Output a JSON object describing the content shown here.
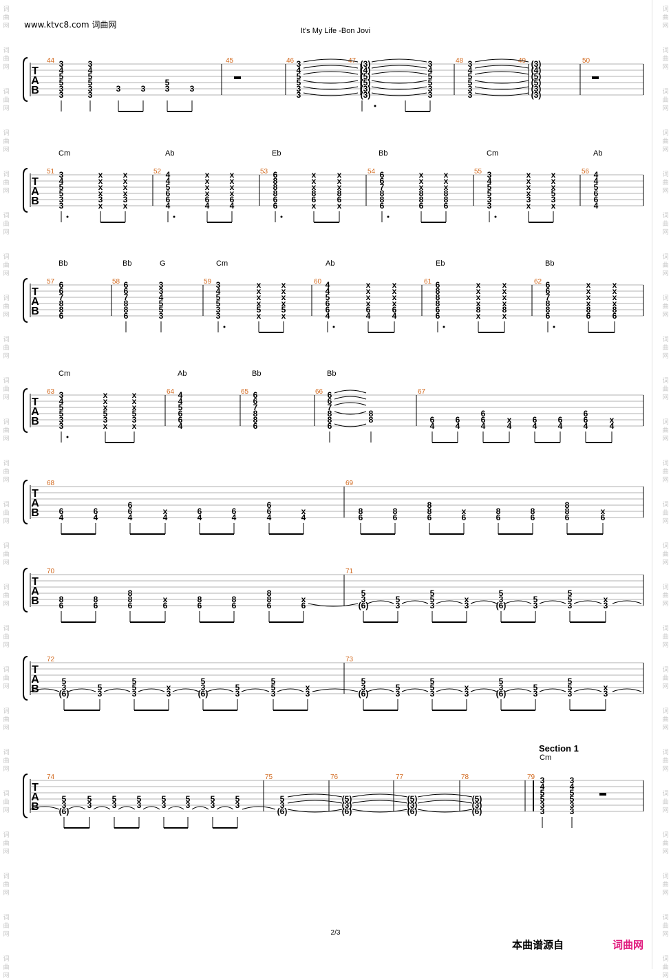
{
  "header": {
    "site": "www.ktvc8.com 词曲网",
    "title": "It's My Life -Bon Jovi"
  },
  "footer": {
    "page": "2/3",
    "source": "本曲谱源自",
    "brand": "词曲网"
  },
  "watermark": [
    "词",
    "曲",
    "网"
  ],
  "tab_letters": [
    "T",
    "A",
    "B"
  ],
  "rest_symbol": "–",
  "section": {
    "title": "Section 1",
    "chord": "Cm"
  },
  "colors": {
    "measure_number": "#d2691e",
    "brand": "#e0197d",
    "staff": "#999999"
  },
  "systems": [
    {
      "measures": [
        "44",
        "45",
        "46",
        "47",
        "48",
        "49",
        "50"
      ],
      "chords": []
    },
    {
      "measures": [
        "51",
        "52",
        "53",
        "54",
        "55",
        "56"
      ],
      "chords": [
        "Cm",
        "Ab",
        "Eb",
        "Bb",
        "Cm",
        "Ab"
      ]
    },
    {
      "measures": [
        "57",
        "58",
        "59",
        "60",
        "61",
        "62"
      ],
      "chords": [
        "Bb",
        "Bb",
        "G",
        "Cm",
        "Ab",
        "Eb",
        "Bb"
      ]
    },
    {
      "measures": [
        "63",
        "64",
        "65",
        "66",
        "67"
      ],
      "chords": [
        "Cm",
        "Ab",
        "Bb",
        "Bb"
      ]
    },
    {
      "measures": [
        "68",
        "69"
      ],
      "chords": []
    },
    {
      "measures": [
        "70",
        "71"
      ],
      "chords": []
    },
    {
      "measures": [
        "72",
        "73"
      ],
      "chords": []
    },
    {
      "measures": [
        "74",
        "75",
        "76",
        "77",
        "78",
        "79"
      ],
      "chords": []
    }
  ]
}
